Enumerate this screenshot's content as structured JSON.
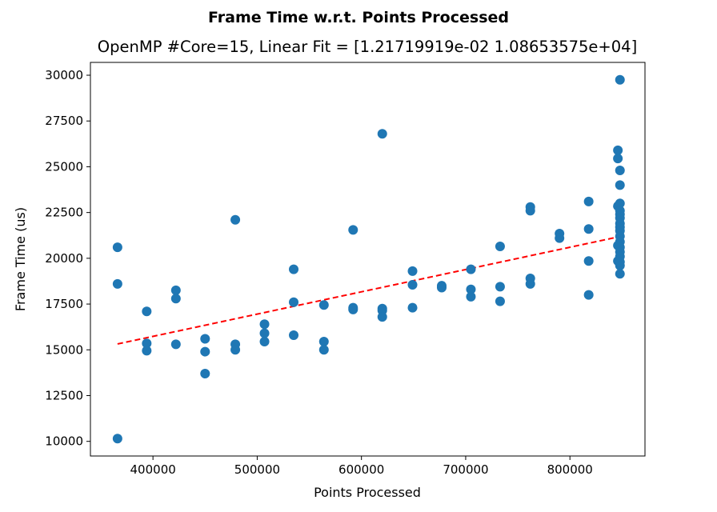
{
  "chart_data": {
    "type": "scatter",
    "suptitle": "Frame Time w.r.t. Points Processed",
    "title": "OpenMP #Core=15, Linear Fit = [1.21719919e-02 1.08653575e+04]",
    "xlabel": "Points Processed",
    "ylabel": "Frame Time (us)",
    "xlim": [
      340000,
      872000
    ],
    "ylim": [
      9200,
      30700
    ],
    "xticks": [
      400000,
      500000,
      600000,
      700000,
      800000
    ],
    "xtick_labels": [
      "400000",
      "500000",
      "600000",
      "700000",
      "800000"
    ],
    "yticks": [
      10000,
      12500,
      15000,
      17500,
      20000,
      22500,
      25000,
      27500,
      30000
    ],
    "ytick_labels": [
      "10000",
      "12500",
      "15000",
      "17500",
      "20000",
      "22500",
      "25000",
      "27500",
      "30000"
    ],
    "grid": false,
    "fit": {
      "slope": 0.0121719919,
      "intercept": 10865.3575,
      "x_range": [
        366000,
        849000
      ],
      "color": "#ff0000",
      "style": "dashed"
    },
    "marker_color": "#1f77b4",
    "points": [
      {
        "x": 366000,
        "y": 20600
      },
      {
        "x": 366000,
        "y": 18600
      },
      {
        "x": 366000,
        "y": 10150
      },
      {
        "x": 394000,
        "y": 17100
      },
      {
        "x": 394000,
        "y": 15350
      },
      {
        "x": 394000,
        "y": 14950
      },
      {
        "x": 422000,
        "y": 18250
      },
      {
        "x": 422000,
        "y": 17800
      },
      {
        "x": 422000,
        "y": 15300
      },
      {
        "x": 450000,
        "y": 15600
      },
      {
        "x": 450000,
        "y": 14900
      },
      {
        "x": 450000,
        "y": 13700
      },
      {
        "x": 479000,
        "y": 22100
      },
      {
        "x": 479000,
        "y": 15300
      },
      {
        "x": 479000,
        "y": 15000
      },
      {
        "x": 507000,
        "y": 16400
      },
      {
        "x": 507000,
        "y": 15900
      },
      {
        "x": 507000,
        "y": 15450
      },
      {
        "x": 535000,
        "y": 19400
      },
      {
        "x": 535000,
        "y": 17600
      },
      {
        "x": 535000,
        "y": 15800
      },
      {
        "x": 564000,
        "y": 17450
      },
      {
        "x": 564000,
        "y": 15450
      },
      {
        "x": 564000,
        "y": 15000
      },
      {
        "x": 592000,
        "y": 21550
      },
      {
        "x": 592000,
        "y": 17300
      },
      {
        "x": 592000,
        "y": 17200
      },
      {
        "x": 620000,
        "y": 26800
      },
      {
        "x": 620000,
        "y": 17250
      },
      {
        "x": 620000,
        "y": 17150
      },
      {
        "x": 620000,
        "y": 16800
      },
      {
        "x": 649000,
        "y": 19300
      },
      {
        "x": 649000,
        "y": 18550
      },
      {
        "x": 649000,
        "y": 17300
      },
      {
        "x": 677000,
        "y": 18500
      },
      {
        "x": 677000,
        "y": 18400
      },
      {
        "x": 705000,
        "y": 19400
      },
      {
        "x": 705000,
        "y": 18300
      },
      {
        "x": 705000,
        "y": 17900
      },
      {
        "x": 733000,
        "y": 20650
      },
      {
        "x": 733000,
        "y": 18450
      },
      {
        "x": 733000,
        "y": 17650
      },
      {
        "x": 762000,
        "y": 22800
      },
      {
        "x": 762000,
        "y": 22600
      },
      {
        "x": 762000,
        "y": 18900
      },
      {
        "x": 762000,
        "y": 18600
      },
      {
        "x": 790000,
        "y": 21350
      },
      {
        "x": 790000,
        "y": 21100
      },
      {
        "x": 818000,
        "y": 23100
      },
      {
        "x": 818000,
        "y": 21600
      },
      {
        "x": 818000,
        "y": 19850
      },
      {
        "x": 818000,
        "y": 18000
      },
      {
        "x": 846000,
        "y": 25900
      },
      {
        "x": 846000,
        "y": 25450
      },
      {
        "x": 846000,
        "y": 22850
      },
      {
        "x": 846000,
        "y": 20700
      },
      {
        "x": 846000,
        "y": 19850
      },
      {
        "x": 848000,
        "y": 29750
      },
      {
        "x": 848000,
        "y": 24800
      },
      {
        "x": 848000,
        "y": 24000
      },
      {
        "x": 848000,
        "y": 23000
      },
      {
        "x": 848000,
        "y": 22600
      },
      {
        "x": 848000,
        "y": 22400
      },
      {
        "x": 848000,
        "y": 22200
      },
      {
        "x": 848000,
        "y": 21900
      },
      {
        "x": 848000,
        "y": 21700
      },
      {
        "x": 848000,
        "y": 21500
      },
      {
        "x": 848000,
        "y": 21200
      },
      {
        "x": 848000,
        "y": 20900
      },
      {
        "x": 848000,
        "y": 20600
      },
      {
        "x": 848000,
        "y": 20350
      },
      {
        "x": 848000,
        "y": 20100
      },
      {
        "x": 848000,
        "y": 19800
      },
      {
        "x": 848000,
        "y": 19600
      },
      {
        "x": 848000,
        "y": 19150
      }
    ]
  }
}
